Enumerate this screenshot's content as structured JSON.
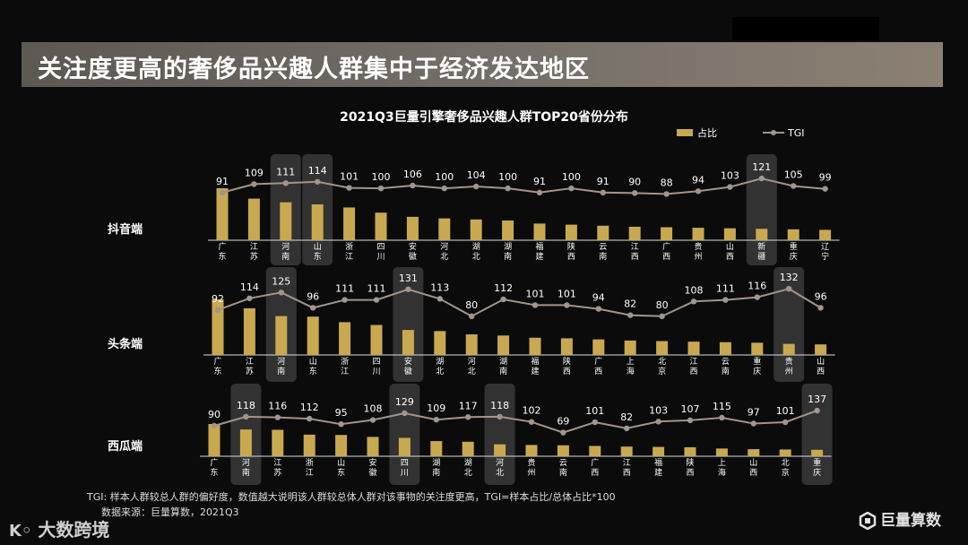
{
  "header": {
    "title": "关注度更高的奢侈品兴趣人群集中于经济发达地区"
  },
  "chart_data": {
    "type": "bar+line",
    "title": "2021Q3巨量引擎奢侈品兴趣人群TOP20省份分布",
    "legend": {
      "bar": "占比",
      "line": "TGI",
      "position": "top-right"
    },
    "colors": {
      "bar": "#c8a951",
      "line": "#a4948a",
      "highlight": "#3a3a3a",
      "text": "#ffffff"
    },
    "panels": [
      {
        "name": "抖音端",
        "categories": [
          "广东",
          "江苏",
          "河南",
          "山东",
          "浙江",
          "四川",
          "安徽",
          "河北",
          "湖北",
          "湖南",
          "福建",
          "陕西",
          "云南",
          "江西",
          "广西",
          "贵州",
          "山西",
          "新疆",
          "重庆",
          "辽宁"
        ],
        "share": [
          10.0,
          8.0,
          7.3,
          6.9,
          6.3,
          5.3,
          4.5,
          4.2,
          4.0,
          3.8,
          3.2,
          3.0,
          2.8,
          2.6,
          2.5,
          2.4,
          2.3,
          2.2,
          2.1,
          2.0
        ],
        "tgi": [
          91,
          109,
          111,
          114,
          101,
          100,
          106,
          100,
          104,
          100,
          91,
          100,
          91,
          90,
          88,
          94,
          103,
          121,
          105,
          99
        ],
        "highlight": [
          "河南",
          "山东",
          "新疆"
        ]
      },
      {
        "name": "头条端",
        "categories": [
          "广东",
          "江苏",
          "河南",
          "山东",
          "浙江",
          "四川",
          "安徽",
          "湖北",
          "河北",
          "湖南",
          "福建",
          "陕西",
          "广西",
          "上海",
          "北京",
          "江西",
          "云南",
          "重庆",
          "贵州",
          "山西"
        ],
        "share": [
          10.0,
          8.4,
          7.0,
          6.9,
          5.9,
          5.4,
          4.5,
          4.3,
          3.7,
          3.5,
          3.1,
          3.0,
          2.8,
          2.6,
          2.5,
          2.4,
          2.3,
          2.2,
          2.0,
          1.9
        ],
        "tgi": [
          92,
          114,
          125,
          96,
          111,
          111,
          131,
          113,
          80,
          112,
          101,
          101,
          94,
          82,
          80,
          108,
          111,
          116,
          132,
          96
        ],
        "highlight": [
          "河南",
          "安徽",
          "贵州"
        ]
      },
      {
        "name": "西瓜端",
        "categories": [
          "广东",
          "河南",
          "江苏",
          "浙江",
          "山东",
          "安徽",
          "四川",
          "湖南",
          "湖北",
          "河北",
          "贵州",
          "云南",
          "广西",
          "江西",
          "福建",
          "陕西",
          "上海",
          "山西",
          "北京",
          "重庆"
        ],
        "share": [
          10.0,
          8.3,
          8.2,
          6.7,
          6.6,
          6.0,
          5.7,
          4.7,
          4.5,
          3.7,
          3.5,
          3.4,
          3.2,
          3.0,
          2.9,
          2.8,
          2.4,
          2.2,
          2.1,
          2.0
        ],
        "tgi": [
          90,
          118,
          116,
          112,
          95,
          108,
          129,
          109,
          117,
          118,
          102,
          69,
          101,
          82,
          103,
          107,
          115,
          97,
          101,
          137
        ],
        "highlight": [
          "河南",
          "四川",
          "河北",
          "重庆"
        ]
      }
    ]
  },
  "footnotes": {
    "tgi_note": "TGI: 样本人群较总人群的偏好度，数值越大说明该人群较总体人群对该事物的关注度更高，TGI=样本占比/总体占比*100",
    "source": "数据来源：巨量算数，2021Q3"
  },
  "branding": {
    "left_logo": "大数跨境",
    "right_logo": "巨量算数"
  }
}
